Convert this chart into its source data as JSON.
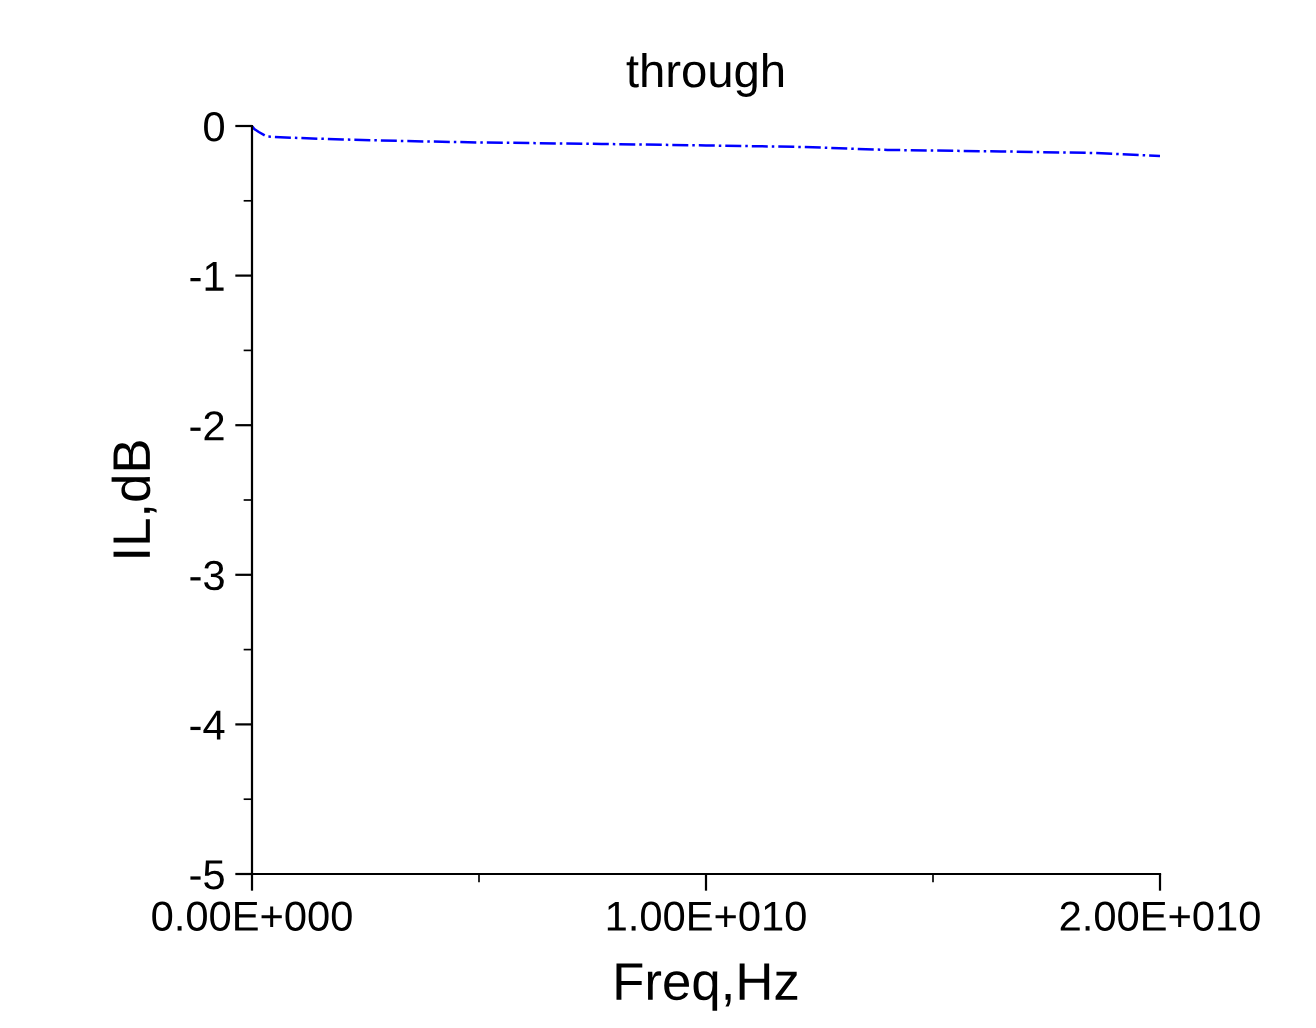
{
  "chart_data": {
    "type": "line",
    "title": "through",
    "xlabel": "Freq,Hz",
    "ylabel": "IL,dB",
    "xlim": [
      0,
      20000000000
    ],
    "xticks": [
      {
        "value": 0,
        "label": "0.00E+000"
      },
      {
        "value": 10000000000,
        "label": "1.00E+010"
      },
      {
        "value": 20000000000,
        "label": "2.00E+010"
      }
    ],
    "ylim": [
      -5,
      0
    ],
    "yticks": [
      -5,
      -4,
      -3,
      -2,
      -1,
      0
    ],
    "grid": false,
    "legend": false,
    "line_style": "dashdot",
    "marker": "none",
    "series": [
      {
        "color": "#0000ff",
        "x": [
          0,
          50000000,
          150000000,
          320000000,
          1000000000,
          2000000000,
          3300000000,
          5000000000,
          7700000000,
          10000000000,
          12100000000,
          14000000000,
          16500000000,
          18500000000,
          20000000000
        ],
        "values": [
          0,
          -0.02,
          -0.04,
          -0.07,
          -0.08,
          -0.09,
          -0.1,
          -0.11,
          -0.12,
          -0.13,
          -0.14,
          -0.16,
          -0.17,
          -0.18,
          -0.2
        ]
      }
    ]
  }
}
